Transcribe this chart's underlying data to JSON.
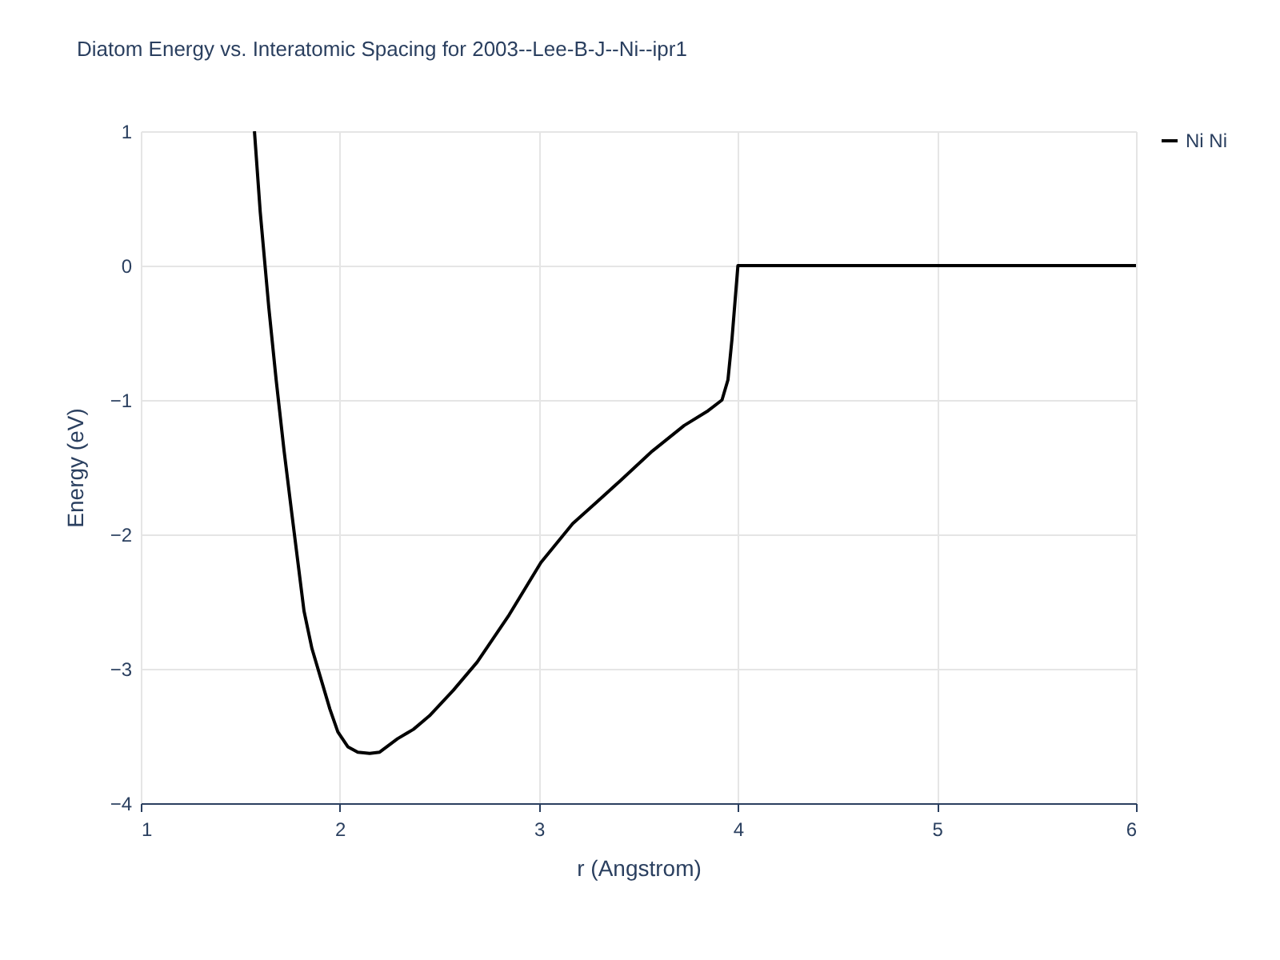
{
  "chart_data": {
    "type": "line",
    "title": "Diatom Energy vs. Interatomic Spacing for 2003--Lee-B-J--Ni--ipr1",
    "xlabel": "r (Angstrom)",
    "ylabel": "Energy (eV)",
    "xlim": [
      1,
      6
    ],
    "xticks": [
      1,
      2,
      3,
      4,
      5,
      6
    ],
    "ylim": [
      -4,
      1
    ],
    "yticks": [
      -4,
      -3,
      -2,
      -1,
      0,
      1
    ],
    "grid": true,
    "legend": "top right",
    "series": [
      {
        "name": "Ni Ni",
        "color": "#000000",
        "x": [
          1.571,
          1.6,
          1.643,
          1.68,
          1.72,
          1.76,
          1.82,
          1.86,
          1.9,
          1.95,
          1.99,
          2.04,
          2.09,
          2.15,
          2.2,
          2.29,
          2.37,
          2.45,
          2.57,
          2.69,
          2.85,
          3.01,
          3.17,
          3.29,
          3.41,
          3.57,
          3.73,
          3.85,
          3.92,
          3.95,
          3.97,
          4.0,
          4.5,
          5.0,
          5.5,
          6.0
        ],
        "values": [
          1,
          0.4,
          -0.31,
          -0.85,
          -1.38,
          -1.86,
          -2.57,
          -2.85,
          -3.05,
          -3.3,
          -3.47,
          -3.58,
          -3.62,
          -3.63,
          -3.62,
          -3.52,
          -3.45,
          -3.35,
          -3.16,
          -2.95,
          -2.6,
          -2.21,
          -1.92,
          -1.76,
          -1.6,
          -1.38,
          -1.19,
          -1.08,
          -1.0,
          -0.85,
          -0.55,
          0,
          0,
          0,
          0,
          0
        ]
      }
    ]
  }
}
